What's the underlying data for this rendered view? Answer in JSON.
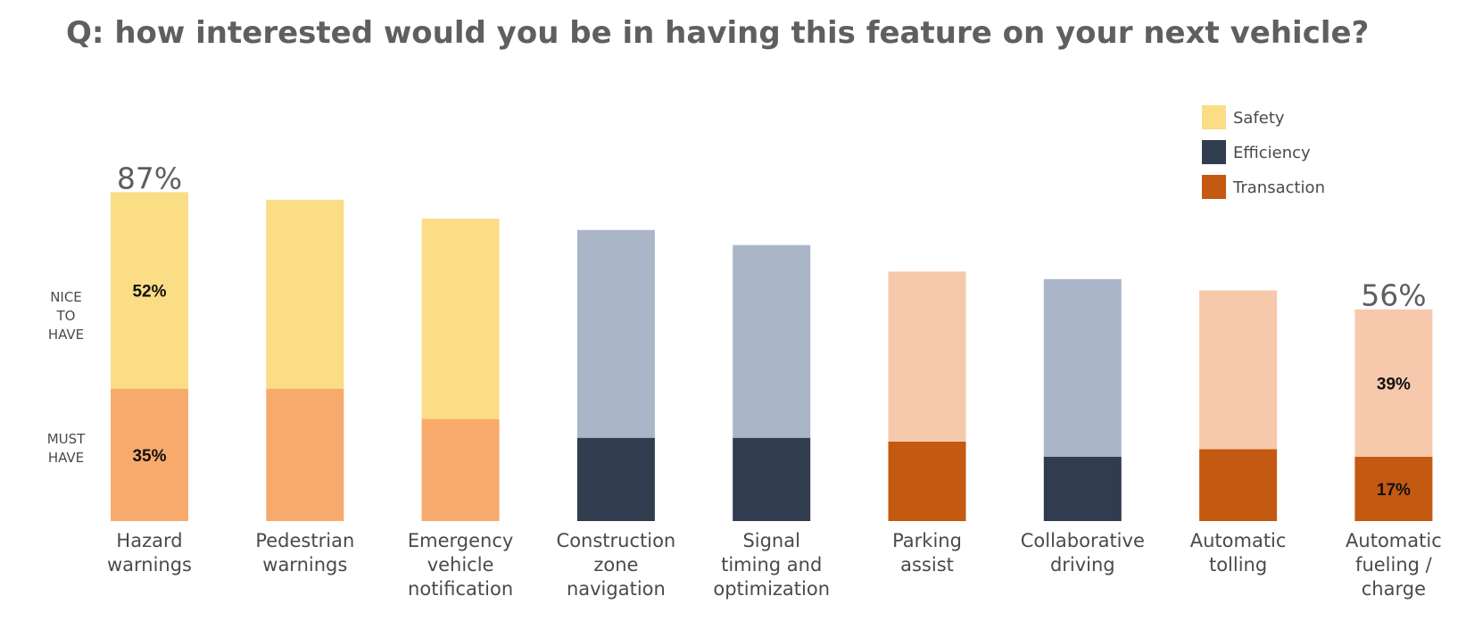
{
  "title": "Q:  how interested would you be in having this feature on your next vehicle?",
  "side_labels": {
    "nice_to_have": [
      "NICE",
      "TO",
      "HAVE"
    ],
    "must_have": [
      "MUST",
      "HAVE"
    ]
  },
  "colors": {
    "safety_must": "#f8aa6c",
    "safety_nice": "#fadd85",
    "efficiency_must": "#313c4e",
    "efficiency_nice": "#aab6c7",
    "transaction_must": "#c45911",
    "transaction_nice": "#f7c9ac",
    "legend_safety": "#fadd85",
    "legend_efficiency": "#313c4e",
    "legend_transaction": "#c45911"
  },
  "legend": [
    {
      "label": "Safety",
      "color_key": "legend_safety"
    },
    {
      "label": "Efficiency",
      "color_key": "legend_efficiency"
    },
    {
      "label": "Transaction",
      "color_key": "legend_transaction"
    }
  ],
  "chart_data": {
    "type": "bar",
    "stacked": true,
    "ylim": [
      0,
      100
    ],
    "grid": false,
    "legend_position": "top-right",
    "series": [
      {
        "name": "MUST HAVE",
        "values": [
          35,
          35,
          27,
          22,
          22,
          21,
          17,
          19,
          17
        ]
      },
      {
        "name": "NICE TO HAVE",
        "values": [
          52,
          50,
          53,
          55,
          51,
          45,
          47,
          42,
          39
        ]
      }
    ],
    "categories": [
      {
        "lines": [
          "Hazard",
          "warnings"
        ],
        "group": "safety"
      },
      {
        "lines": [
          "Pedestrian",
          "warnings"
        ],
        "group": "safety"
      },
      {
        "lines": [
          "Emergency",
          "vehicle",
          "notification"
        ],
        "group": "safety"
      },
      {
        "lines": [
          "Construction",
          "zone",
          "navigation"
        ],
        "group": "efficiency"
      },
      {
        "lines": [
          "Signal",
          "timing and",
          "optimization"
        ],
        "group": "efficiency"
      },
      {
        "lines": [
          "Parking",
          "assist"
        ],
        "group": "transaction"
      },
      {
        "lines": [
          "Collaborative",
          "driving"
        ],
        "group": "efficiency"
      },
      {
        "lines": [
          "Automatic",
          "tolling"
        ],
        "group": "transaction"
      },
      {
        "lines": [
          "Automatic",
          "fueling /",
          "charge"
        ],
        "group": "transaction"
      }
    ],
    "total_labels": [
      {
        "index": 0,
        "text": "87%"
      },
      {
        "index": 8,
        "text": "56%"
      }
    ],
    "segment_labels": [
      {
        "index": 0,
        "series": 1,
        "text": "52%"
      },
      {
        "index": 0,
        "series": 0,
        "text": "35%"
      },
      {
        "index": 8,
        "series": 1,
        "text": "39%"
      },
      {
        "index": 8,
        "series": 0,
        "text": "17%"
      }
    ]
  }
}
